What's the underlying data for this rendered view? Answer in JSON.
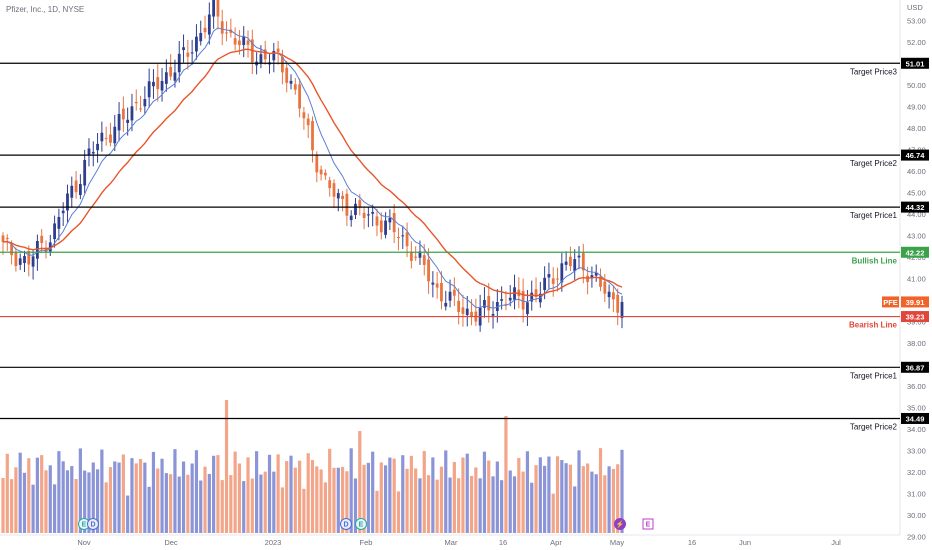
{
  "header": {
    "title": "Pfizer, Inc., 1D, NYSE",
    "currency": "USD"
  },
  "colors": {
    "up": "#2e3e8f",
    "down": "#e8743f",
    "vol_up": "#8b94d6",
    "vol_down": "#f3a589",
    "ema_fast": "#5b7fd6",
    "ema_slow": "#e8562a",
    "bull": "#3ca24a",
    "bear": "#e0463a",
    "target": "#000000",
    "price": "#f0642a"
  },
  "chart_data": {
    "type": "candlestick",
    "title": "Pfizer, Inc., 1D, NYSE",
    "y_axis": {
      "unit": "USD",
      "range": [
        29.0,
        53.8
      ],
      "ticks": [
        "53.00",
        "52.00",
        "51.00",
        "50.00",
        "49.00",
        "48.00",
        "47.00",
        "46.00",
        "45.00",
        "44.00",
        "43.00",
        "42.00",
        "41.00",
        "40.00",
        "39.00",
        "38.00",
        "37.00",
        "36.00",
        "35.00",
        "34.00",
        "33.00",
        "32.00",
        "31.00",
        "30.00",
        "29.00"
      ]
    },
    "x_axis": {
      "labels": [
        "Nov",
        "Dec",
        "2023",
        "Feb",
        "Mar",
        "16",
        "Apr",
        "May",
        "16",
        "Jun",
        "Jul"
      ]
    },
    "last_price": {
      "symbol": "PFE",
      "value": "39.91"
    },
    "levels": [
      {
        "name": "Target Price3",
        "value": "51.01",
        "kind": "target"
      },
      {
        "name": "Target Price2",
        "value": "46.74",
        "kind": "target"
      },
      {
        "name": "Target Price1",
        "value": "44.32",
        "kind": "target"
      },
      {
        "name": "Bullish Line",
        "value": "42.22",
        "kind": "bull"
      },
      {
        "name": "Bearish Line",
        "value": "39.23",
        "kind": "bear"
      },
      {
        "name": "Target Price1",
        "value": "36.87",
        "kind": "target"
      },
      {
        "name": "Target Price2",
        "value": "34.49",
        "kind": "target"
      }
    ],
    "close_path": [
      42.5,
      42.1,
      41.7,
      42.5,
      43.0,
      44.5,
      45.5,
      46.8,
      47.5,
      48.0,
      48.5,
      49.3,
      49.8,
      50.3,
      51.0,
      51.5,
      52.5,
      53.5,
      52.5,
      52.0,
      51.5,
      51.2,
      51.3,
      50.5,
      49.0,
      47.0,
      45.5,
      44.7,
      44.3,
      44.0,
      43.8,
      43.5,
      43.0,
      42.3,
      41.5,
      40.5,
      40.0,
      39.6,
      39.3,
      39.5,
      39.9,
      40.1,
      40.0,
      40.2,
      40.8,
      41.5,
      41.8,
      41.5,
      40.9,
      40.0,
      39.9
    ],
    "event_markers": [
      {
        "label": "E",
        "style": "earnings"
      },
      {
        "label": "D",
        "style": "dividend"
      },
      {
        "label": "D",
        "style": "dividend"
      },
      {
        "label": "E",
        "style": "earnings"
      },
      {
        "label": "⚡",
        "style": "flash"
      },
      {
        "label": "E",
        "style": "future-earnings"
      }
    ],
    "grid": false
  }
}
